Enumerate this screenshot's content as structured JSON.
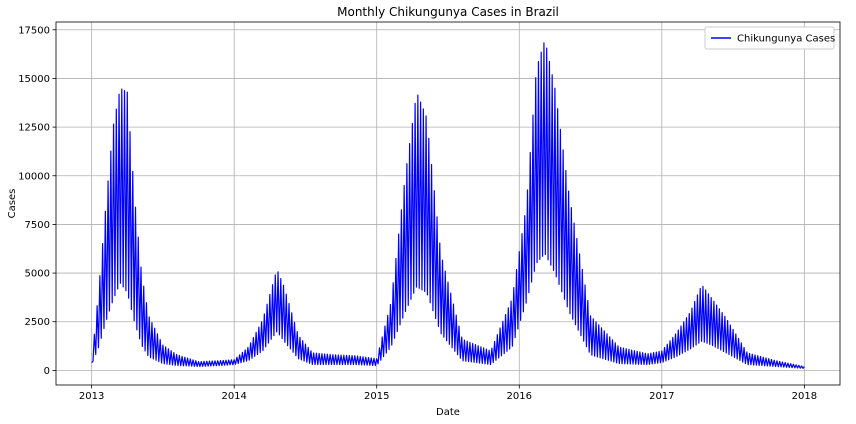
{
  "chart_data": {
    "type": "line",
    "title": "Monthly Chikungunya Cases  in Brazil",
    "xlabel": "Date",
    "ylabel": "Cases",
    "xlim": [
      2012.75,
      2018.25
    ],
    "ylim": [
      -750,
      17900
    ],
    "xticks": [
      2013,
      2014,
      2015,
      2016,
      2017,
      2018
    ],
    "xtick_labels": [
      "2013",
      "2014",
      "2015",
      "2016",
      "2017",
      "2018"
    ],
    "yticks": [
      0,
      2500,
      5000,
      7500,
      10000,
      12500,
      15000,
      17500
    ],
    "ytick_labels": [
      "0",
      "2500",
      "5000",
      "7500",
      "10000",
      "12500",
      "15000",
      "17500"
    ],
    "grid": true,
    "legend_position": "top-right",
    "colors": {
      "series": "#0000ff",
      "grid": "#b0b0b0",
      "axes": "#000000"
    },
    "series": [
      {
        "name": "Chikungunya Cases",
        "note_shape": "high-frequency oscillation between low and high envelopes",
        "x": [
          2013.0,
          2013.05,
          2013.1,
          2013.15,
          2013.2,
          2013.25,
          2013.3,
          2013.35,
          2013.4,
          2013.5,
          2013.6,
          2013.75,
          2013.9,
          2014.0,
          2014.1,
          2014.2,
          2014.3,
          2014.35,
          2014.45,
          2014.55,
          2014.7,
          2014.85,
          2015.0,
          2015.1,
          2015.2,
          2015.28,
          2015.35,
          2015.45,
          2015.6,
          2015.8,
          2015.95,
          2016.05,
          2016.12,
          2016.18,
          2016.25,
          2016.35,
          2016.5,
          2016.7,
          2016.9,
          2017.0,
          2017.1,
          2017.2,
          2017.28,
          2017.35,
          2017.45,
          2017.6,
          2017.8,
          2018.0
        ],
        "high": [
          400,
          4200,
          8500,
          12500,
          14500,
          14300,
          9000,
          5000,
          2800,
          1300,
          800,
          450,
          500,
          550,
          1200,
          2600,
          5200,
          4300,
          1800,
          900,
          800,
          750,
          600,
          3500,
          10000,
          14300,
          13000,
          6000,
          1600,
          1000,
          3700,
          8500,
          15500,
          17000,
          14500,
          9000,
          2800,
          1200,
          850,
          1000,
          1900,
          3000,
          4400,
          3700,
          2700,
          900,
          500,
          200
        ],
        "low": [
          300,
          1200,
          2500,
          3600,
          4500,
          4000,
          2500,
          1300,
          700,
          350,
          250,
          200,
          250,
          300,
          500,
          1000,
          2000,
          1500,
          600,
          300,
          300,
          300,
          250,
          1200,
          3000,
          4300,
          4000,
          1900,
          500,
          300,
          1200,
          3500,
          5500,
          6000,
          5000,
          3000,
          800,
          350,
          300,
          400,
          700,
          1100,
          1500,
          1300,
          900,
          300,
          200,
          100
        ]
      }
    ]
  }
}
